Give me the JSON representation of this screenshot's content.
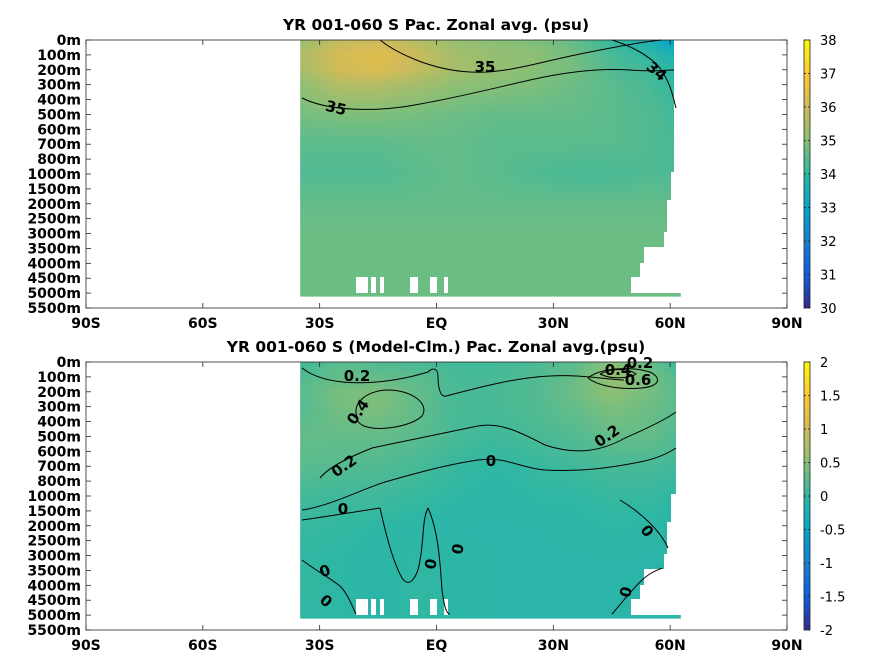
{
  "chart_data": [
    {
      "type": "heatmap",
      "title": "YR 001-060 S Pac. Zonal avg. (psu)",
      "xlabel": "",
      "ylabel": "",
      "x_ticks": [
        "90S",
        "60S",
        "30S",
        "EQ",
        "30N",
        "60N",
        "90N"
      ],
      "x_tick_values": [
        -90,
        -60,
        -30,
        0,
        30,
        60,
        90
      ],
      "y_ticks": [
        "0m",
        "100m",
        "200m",
        "300m",
        "400m",
        "500m",
        "600m",
        "700m",
        "800m",
        "1000m",
        "1500m",
        "2000m",
        "2500m",
        "3000m",
        "3500m",
        "4000m",
        "4500m",
        "5000m",
        "5500m"
      ],
      "xlim": [
        -90,
        90
      ],
      "colorbar": {
        "min": 30,
        "max": 38,
        "ticks": [
          "30",
          "31",
          "32",
          "33",
          "34",
          "35",
          "36",
          "37",
          "38"
        ],
        "colormap": "parula"
      },
      "data_lat_range": [
        -35,
        62
      ],
      "contour_labels": [
        "35",
        "35",
        "34"
      ],
      "grid_lat": [
        -35,
        -25,
        -15,
        -5,
        5,
        15,
        25,
        35,
        45,
        55,
        62
      ],
      "grid_levels": [
        "0m",
        "100m",
        "200m",
        "300m",
        "500m",
        "700m",
        "1000m",
        "2000m",
        "3000m",
        "4000m",
        "5000m"
      ],
      "values": [
        [
          35.2,
          35.8,
          35.9,
          35.6,
          35.2,
          35.0,
          34.9,
          34.6,
          34.1,
          33.6,
          32.7
        ],
        [
          35.5,
          36.1,
          36.3,
          35.9,
          35.4,
          35.2,
          35.1,
          34.8,
          34.3,
          34.0,
          33.6
        ],
        [
          35.4,
          36.0,
          36.2,
          35.8,
          35.4,
          35.2,
          35.0,
          34.8,
          34.4,
          34.2,
          33.9
        ],
        [
          35.1,
          35.6,
          35.6,
          35.4,
          35.1,
          35.0,
          34.9,
          34.7,
          34.5,
          34.3,
          34.0
        ],
        [
          34.8,
          34.9,
          34.9,
          34.8,
          34.7,
          34.6,
          34.6,
          34.6,
          34.5,
          34.4,
          34.2
        ],
        [
          34.5,
          34.5,
          34.5,
          34.6,
          34.6,
          34.5,
          34.5,
          34.5,
          34.5,
          34.4,
          34.3
        ],
        [
          34.4,
          34.4,
          34.4,
          34.5,
          34.6,
          34.5,
          34.4,
          34.3,
          34.3,
          34.4,
          34.3
        ],
        [
          34.6,
          34.6,
          34.6,
          34.6,
          34.6,
          34.6,
          34.6,
          34.6,
          34.6,
          34.6,
          34.6
        ],
        [
          34.7,
          34.7,
          34.7,
          34.7,
          34.7,
          34.7,
          34.7,
          34.7,
          34.7,
          34.7,
          34.7
        ],
        [
          34.7,
          34.7,
          34.7,
          34.7,
          34.7,
          34.7,
          34.7,
          34.7,
          34.7,
          34.7,
          34.7
        ],
        [
          34.7,
          34.7,
          34.7,
          34.7,
          34.7,
          34.7,
          34.7,
          34.7,
          34.7,
          34.7,
          34.7
        ]
      ]
    },
    {
      "type": "heatmap",
      "title": "YR 001-060 S (Model-Clm.) Pac. Zonal avg.(psu)",
      "xlabel": "",
      "ylabel": "",
      "x_ticks": [
        "90S",
        "60S",
        "30S",
        "EQ",
        "30N",
        "60N",
        "90N"
      ],
      "x_tick_values": [
        -90,
        -60,
        -30,
        0,
        30,
        60,
        90
      ],
      "y_ticks": [
        "0m",
        "100m",
        "200m",
        "300m",
        "400m",
        "500m",
        "600m",
        "700m",
        "800m",
        "1000m",
        "1500m",
        "2000m",
        "2500m",
        "3000m",
        "3500m",
        "4000m",
        "4500m",
        "5000m",
        "5500m"
      ],
      "xlim": [
        -90,
        90
      ],
      "colorbar": {
        "min": -2,
        "max": 2,
        "ticks": [
          "-2",
          "-1.5",
          "-1",
          "-0.5",
          "0",
          "0.5",
          "1",
          "1.5",
          "2"
        ],
        "colormap": "parula"
      },
      "data_lat_range": [
        -35,
        62
      ],
      "contour_labels": [
        "0.2",
        "0.4",
        "0.2",
        "0",
        "0",
        "0",
        "0",
        "0",
        "0",
        "0",
        "0.2",
        "0.4",
        "0.6",
        "0.2"
      ],
      "grid_lat": [
        -35,
        -25,
        -15,
        -5,
        5,
        15,
        25,
        35,
        45,
        55,
        62
      ],
      "grid_levels": [
        "0m",
        "100m",
        "200m",
        "300m",
        "500m",
        "700m",
        "1000m",
        "2000m",
        "3000m",
        "4000m",
        "5000m"
      ],
      "values": [
        [
          0.1,
          0.25,
          0.2,
          0.15,
          0.1,
          0.1,
          0.15,
          0.25,
          0.5,
          0.3,
          0.1
        ],
        [
          0.2,
          0.3,
          0.3,
          0.25,
          0.15,
          0.15,
          0.2,
          0.3,
          0.6,
          0.4,
          0.2
        ],
        [
          0.25,
          0.4,
          0.45,
          0.3,
          0.15,
          0.15,
          0.2,
          0.35,
          0.55,
          0.4,
          0.25
        ],
        [
          0.2,
          0.4,
          0.45,
          0.3,
          0.15,
          0.15,
          0.2,
          0.3,
          0.45,
          0.35,
          0.25
        ],
        [
          0.3,
          0.3,
          0.3,
          0.25,
          0.15,
          0.1,
          0.15,
          0.2,
          0.3,
          0.3,
          0.2
        ],
        [
          0.25,
          0.22,
          0.2,
          0.15,
          0.05,
          0.0,
          0.05,
          0.1,
          0.15,
          0.15,
          0.1
        ],
        [
          0.12,
          0.1,
          0.1,
          0.05,
          0.0,
          -0.05,
          0.0,
          0.0,
          0.05,
          0.05,
          0.0
        ],
        [
          0.05,
          0.03,
          0.0,
          -0.03,
          -0.05,
          -0.05,
          -0.05,
          -0.03,
          0.0,
          -0.02,
          -0.05
        ],
        [
          0.02,
          0.0,
          -0.05,
          0.0,
          -0.03,
          -0.05,
          -0.05,
          -0.05,
          -0.05,
          -0.05,
          -0.05
        ],
        [
          0.03,
          0.0,
          -0.05,
          0.03,
          -0.03,
          -0.05,
          -0.05,
          -0.05,
          -0.05,
          -0.05,
          -0.05
        ],
        [
          0.02,
          0.0,
          -0.05,
          0.02,
          -0.03,
          -0.05,
          -0.05,
          -0.05,
          -0.05,
          -0.05,
          -0.05
        ]
      ]
    }
  ]
}
